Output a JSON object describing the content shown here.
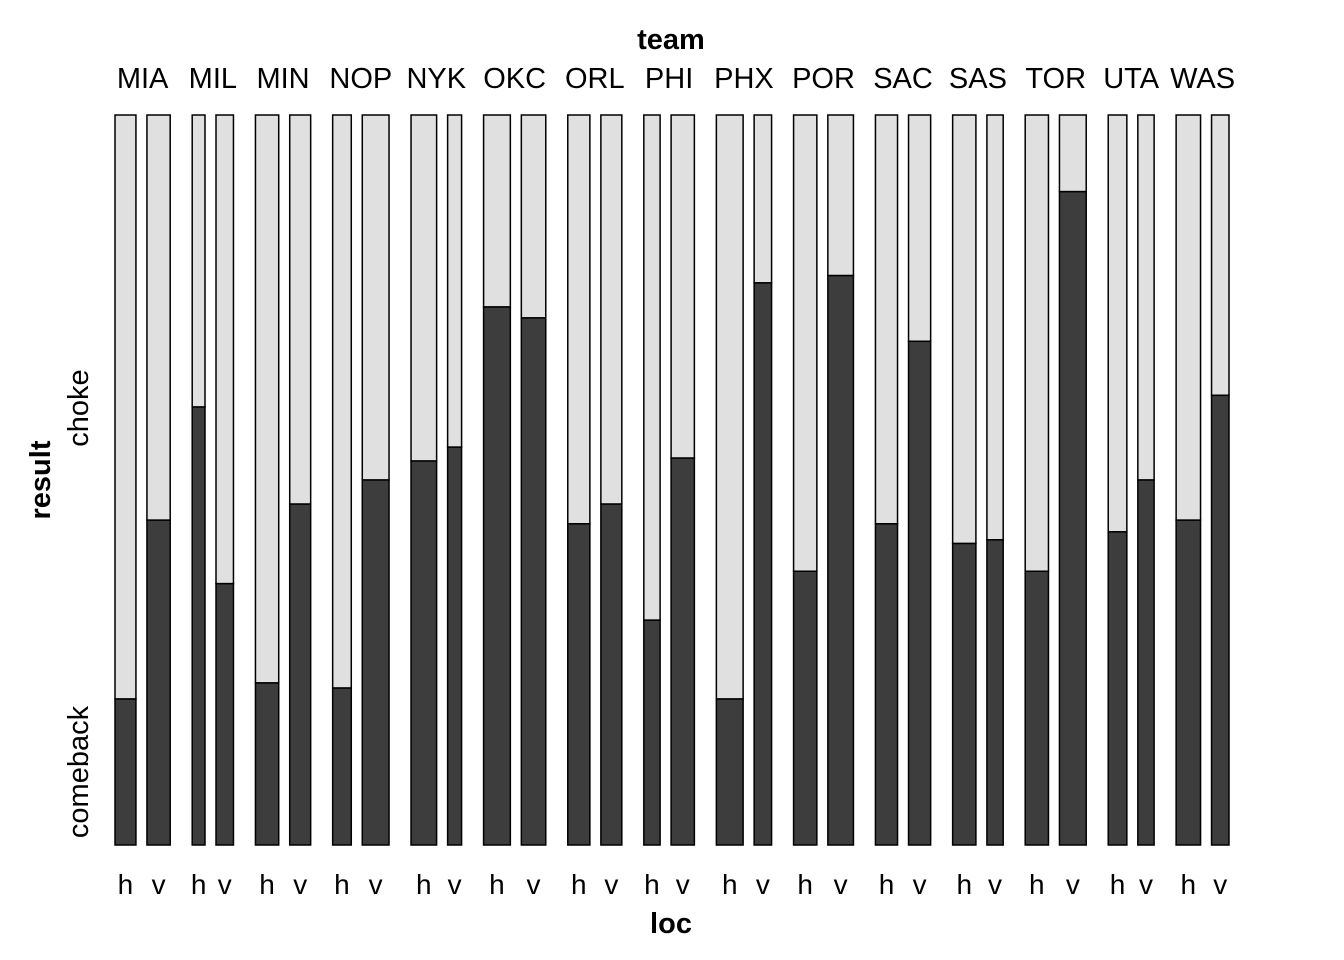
{
  "chart_data": {
    "type": "mosaic",
    "title_top": "team",
    "xlabel": "loc",
    "ylabel": "result",
    "levels": [
      "comeback",
      "choke"
    ],
    "colors": {
      "comeback": "#3d3d3d",
      "choke": "#e0e0e0",
      "border": "#000000"
    },
    "teams": [
      {
        "name": "MIA",
        "groups": [
          {
            "loc": "h",
            "weight": 0.9,
            "comeback": 0.2
          },
          {
            "loc": "v",
            "weight": 1.0,
            "comeback": 0.445
          }
        ]
      },
      {
        "name": "MIL",
        "groups": [
          {
            "loc": "h",
            "weight": 0.55,
            "comeback": 0.6
          },
          {
            "loc": "v",
            "weight": 0.75,
            "comeback": 0.358
          }
        ]
      },
      {
        "name": "MIN",
        "groups": [
          {
            "loc": "h",
            "weight": 1.0,
            "comeback": 0.222
          },
          {
            "loc": "v",
            "weight": 0.9,
            "comeback": 0.467
          }
        ]
      },
      {
        "name": "NOP",
        "groups": [
          {
            "loc": "h",
            "weight": 0.8,
            "comeback": 0.215
          },
          {
            "loc": "v",
            "weight": 1.15,
            "comeback": 0.5
          }
        ]
      },
      {
        "name": "NYK",
        "groups": [
          {
            "loc": "h",
            "weight": 1.1,
            "comeback": 0.526
          },
          {
            "loc": "v",
            "weight": 0.6,
            "comeback": 0.545
          }
        ]
      },
      {
        "name": "OKC",
        "groups": [
          {
            "loc": "h",
            "weight": 1.15,
            "comeback": 0.737
          },
          {
            "loc": "v",
            "weight": 1.05,
            "comeback": 0.722
          }
        ]
      },
      {
        "name": "ORL",
        "groups": [
          {
            "loc": "h",
            "weight": 0.95,
            "comeback": 0.44
          },
          {
            "loc": "v",
            "weight": 0.9,
            "comeback": 0.467
          }
        ]
      },
      {
        "name": "PHI",
        "groups": [
          {
            "loc": "h",
            "weight": 0.7,
            "comeback": 0.308
          },
          {
            "loc": "v",
            "weight": 1.0,
            "comeback": 0.53
          }
        ]
      },
      {
        "name": "PHX",
        "groups": [
          {
            "loc": "h",
            "weight": 1.15,
            "comeback": 0.2
          },
          {
            "loc": "v",
            "weight": 0.75,
            "comeback": 0.77
          }
        ]
      },
      {
        "name": "POR",
        "groups": [
          {
            "loc": "h",
            "weight": 1.0,
            "comeback": 0.375
          },
          {
            "loc": "v",
            "weight": 1.1,
            "comeback": 0.78
          }
        ]
      },
      {
        "name": "SAC",
        "groups": [
          {
            "loc": "h",
            "weight": 0.95,
            "comeback": 0.44
          },
          {
            "loc": "v",
            "weight": 0.95,
            "comeback": 0.69
          }
        ]
      },
      {
        "name": "SAS",
        "groups": [
          {
            "loc": "h",
            "weight": 1.0,
            "comeback": 0.413
          },
          {
            "loc": "v",
            "weight": 0.7,
            "comeback": 0.418
          }
        ]
      },
      {
        "name": "TOR",
        "groups": [
          {
            "loc": "h",
            "weight": 1.0,
            "comeback": 0.375
          },
          {
            "loc": "v",
            "weight": 1.15,
            "comeback": 0.895
          }
        ]
      },
      {
        "name": "UTA",
        "groups": [
          {
            "loc": "h",
            "weight": 0.8,
            "comeback": 0.429
          },
          {
            "loc": "v",
            "weight": 0.7,
            "comeback": 0.5
          }
        ]
      },
      {
        "name": "WAS",
        "groups": [
          {
            "loc": "h",
            "weight": 1.05,
            "comeback": 0.445
          },
          {
            "loc": "v",
            "weight": 0.75,
            "comeback": 0.616
          }
        ]
      }
    ]
  }
}
